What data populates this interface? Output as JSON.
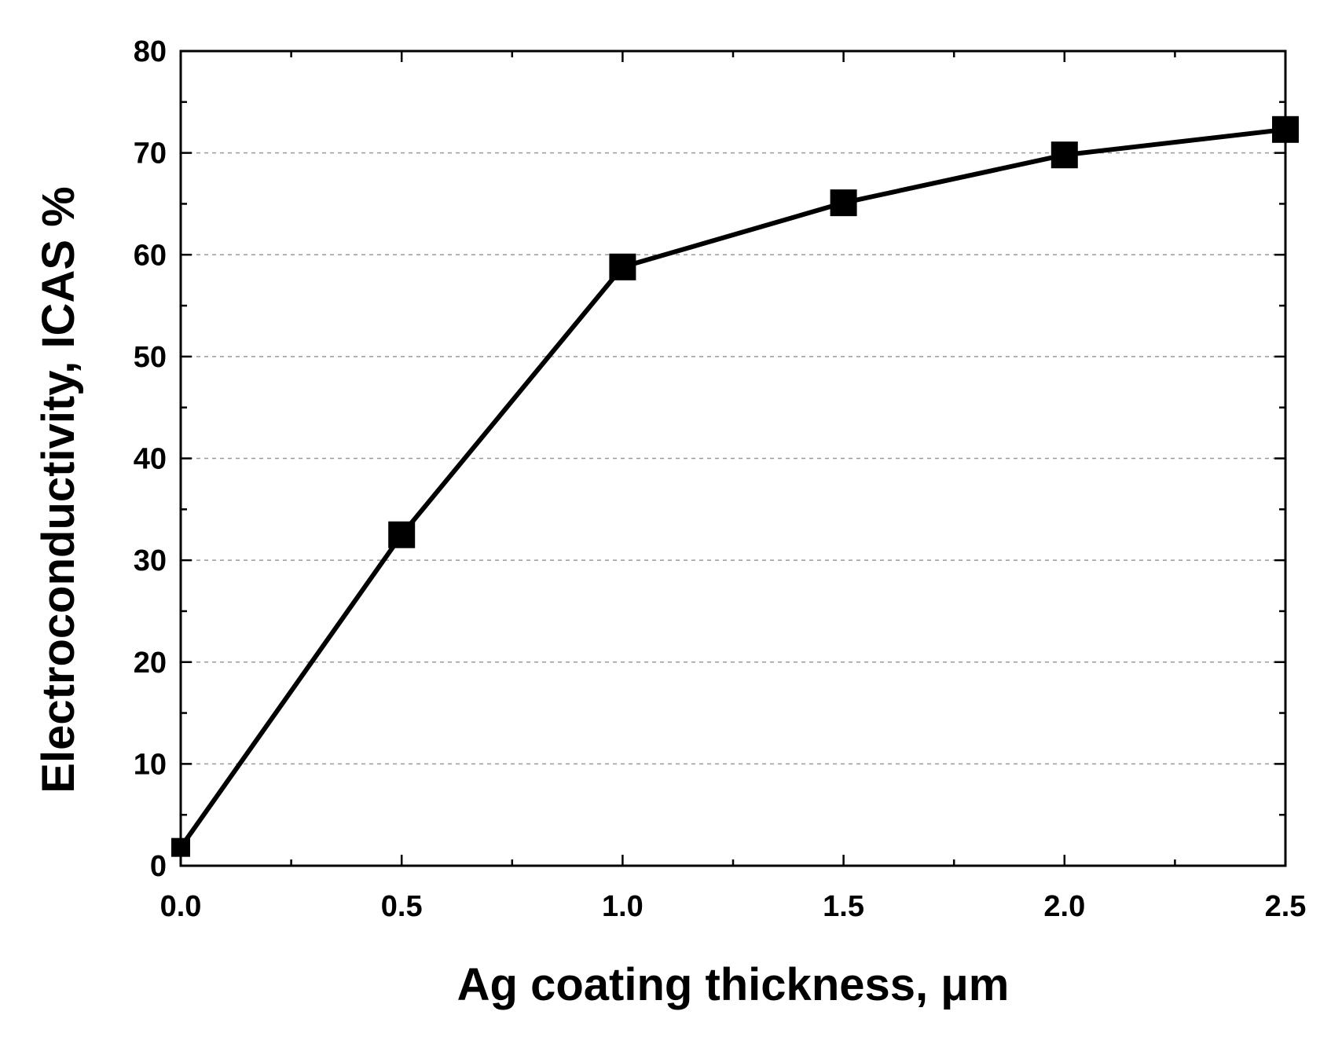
{
  "chart_data": {
    "type": "line",
    "title": "",
    "xlabel": "Ag coating thickness, μm",
    "ylabel": "Electroconductivity, ICAS %",
    "xlim": [
      0.0,
      2.5
    ],
    "ylim": [
      0,
      80
    ],
    "x_ticks": [
      0.0,
      0.5,
      1.0,
      1.5,
      2.0,
      2.5
    ],
    "x_tick_labels": [
      "0.0",
      "0.5",
      "1.0",
      "1.5",
      "2.0",
      "2.5"
    ],
    "y_ticks": [
      0,
      10,
      20,
      30,
      40,
      50,
      60,
      70,
      80
    ],
    "y_tick_labels": [
      "0",
      "10",
      "20",
      "30",
      "40",
      "50",
      "60",
      "70",
      "80"
    ],
    "grid": "horizontal dashed",
    "legend": "none",
    "series": [
      {
        "name": "Electroconductivity",
        "marker": "square",
        "color": "#000000",
        "x": [
          0.0,
          0.5,
          1.0,
          1.5,
          2.0,
          2.5
        ],
        "y": [
          1.8,
          32.5,
          58.8,
          65.1,
          69.8,
          72.3
        ]
      }
    ]
  }
}
